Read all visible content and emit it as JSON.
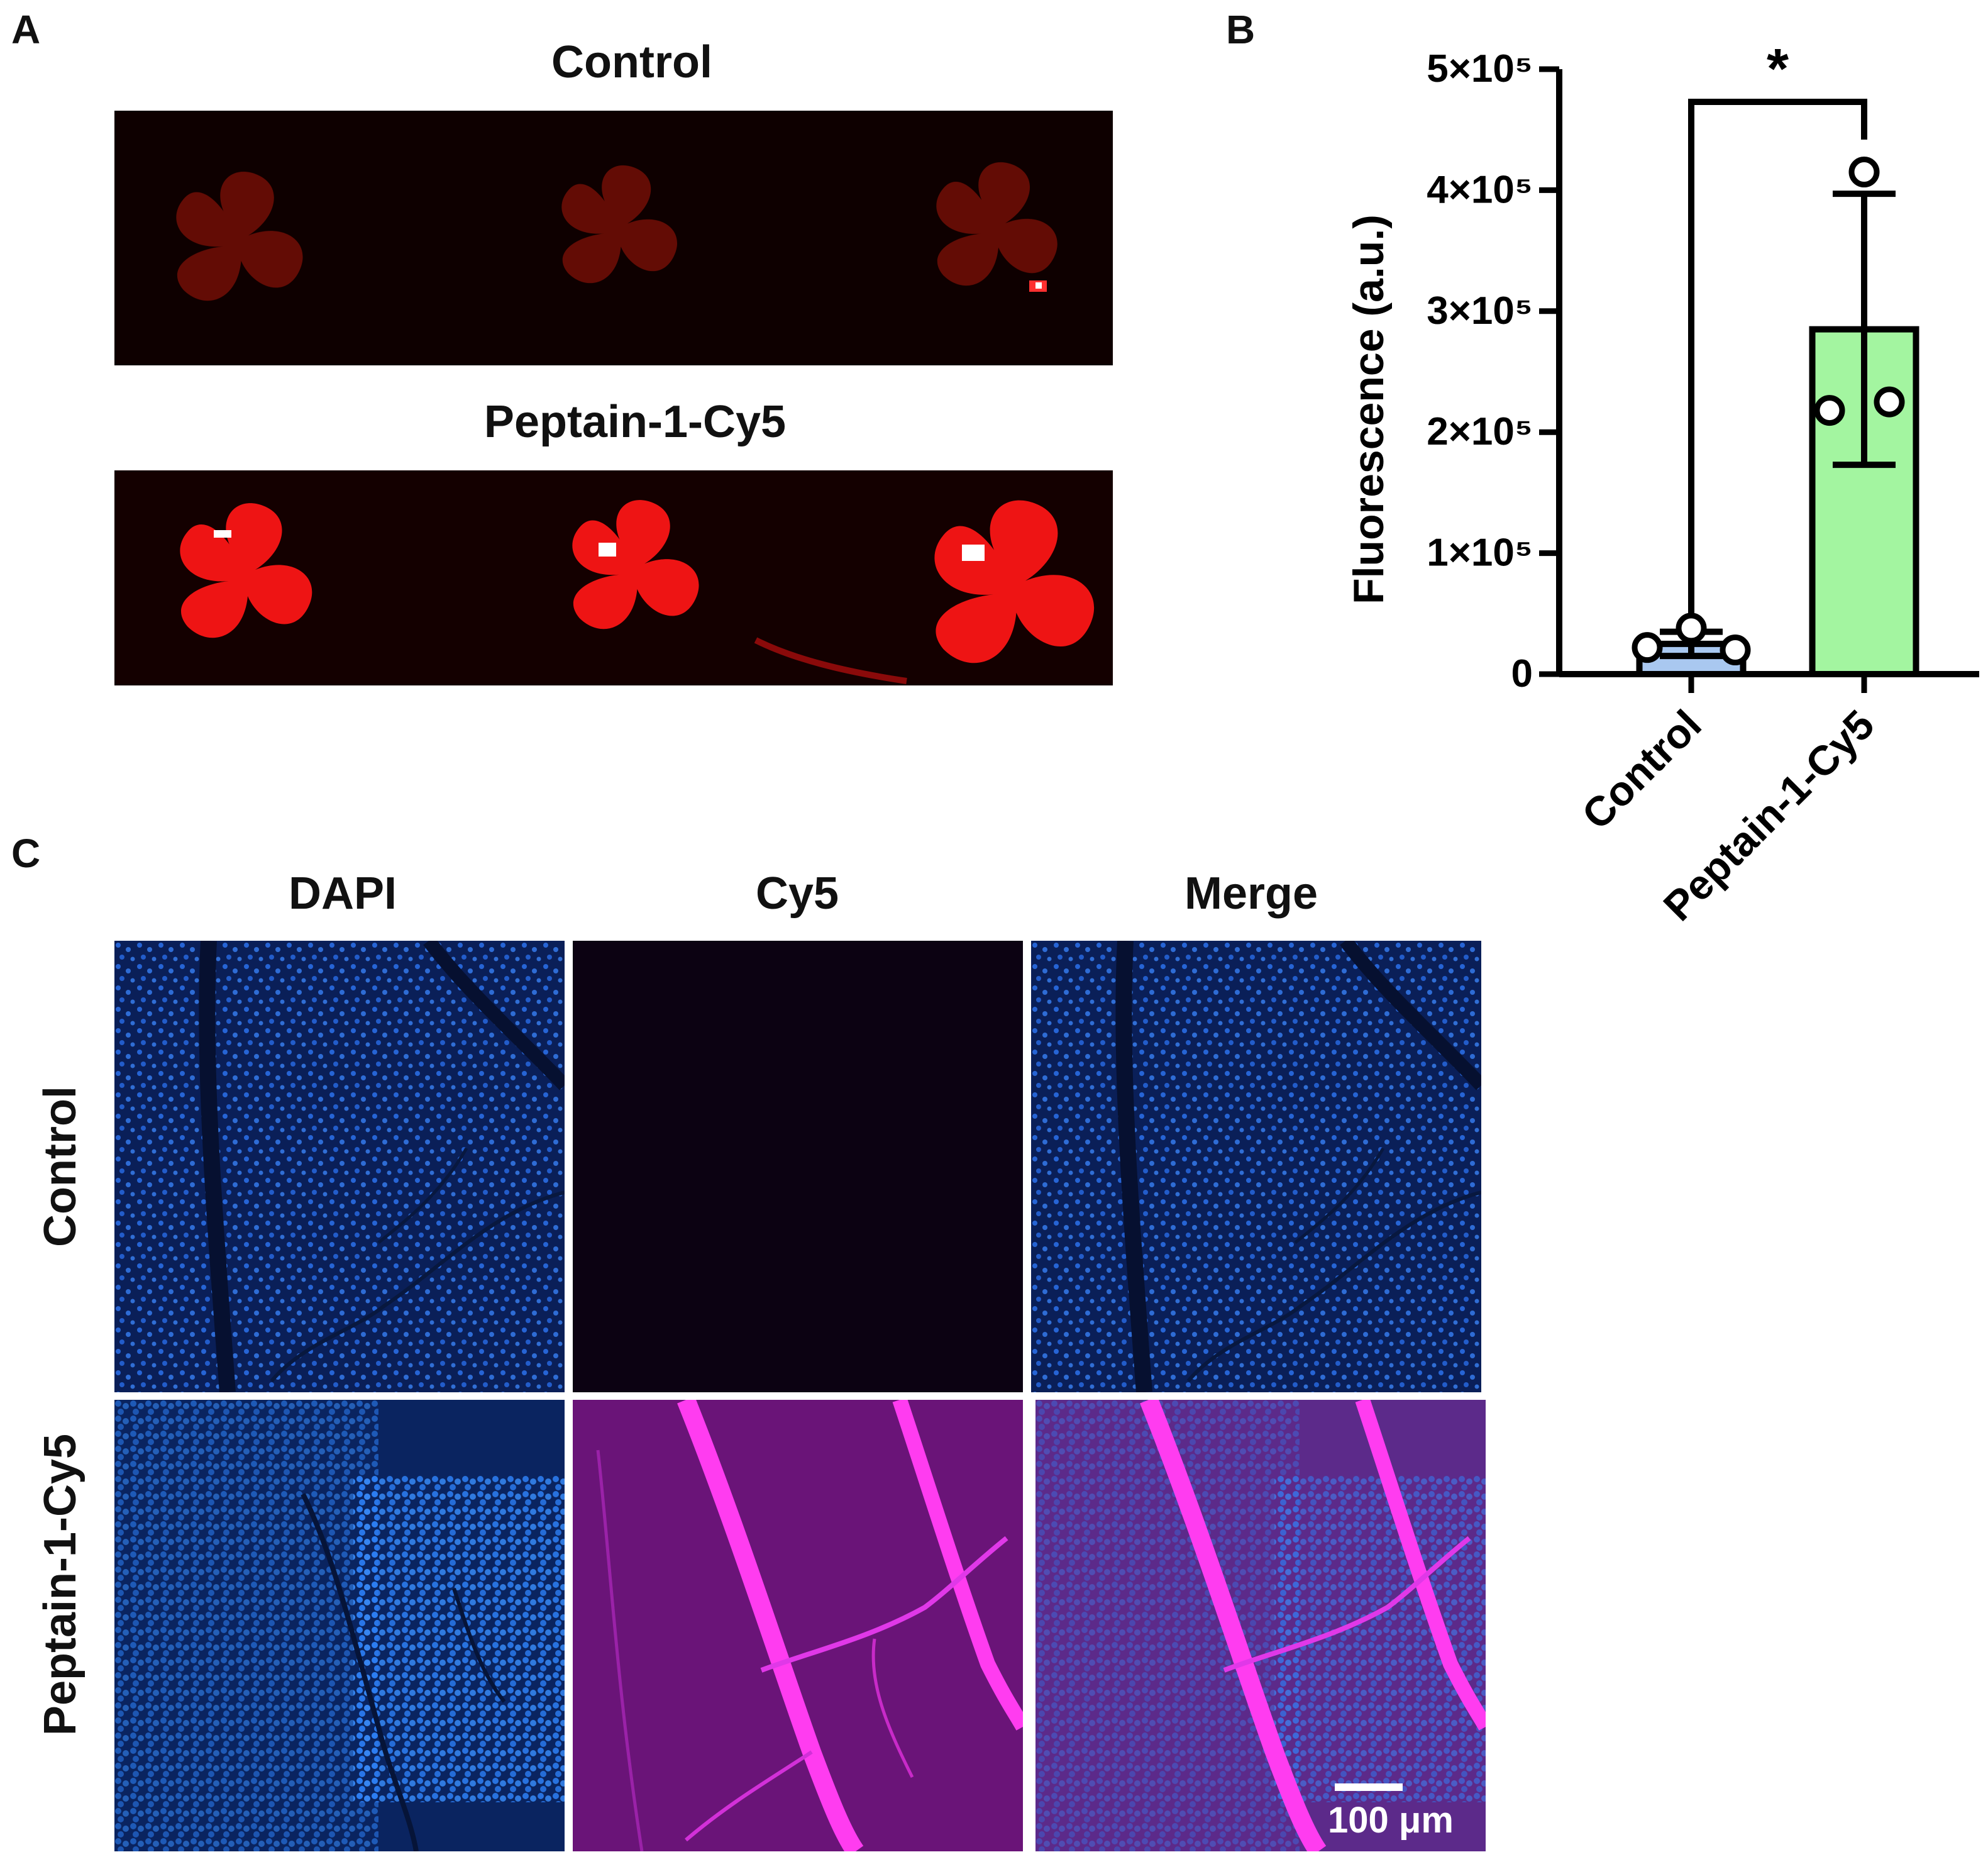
{
  "panels": {
    "a": {
      "letter": "A",
      "top_title": "Control",
      "bottom_title": "Peptain-1-Cy5"
    },
    "b": {
      "letter": "B"
    },
    "c": {
      "letter": "C",
      "columns": [
        "DAPI",
        "Cy5",
        "Merge"
      ],
      "rows": [
        "Control",
        "Peptain-1-Cy5"
      ],
      "scale_bar_label": "100 μm"
    }
  },
  "chart_data": {
    "type": "bar",
    "categories": [
      "Control",
      "Peptain-1-Cy5"
    ],
    "values": [
      25000,
      285000
    ],
    "error_sd": [
      10000,
      112000
    ],
    "points": [
      [
        22000,
        38000,
        20000
      ],
      [
        415000,
        218000,
        225000
      ]
    ],
    "ylabel": "Fluorescence (a.u.)",
    "ylim": [
      0,
      500000
    ],
    "yticks": [
      {
        "value": 0,
        "label": "0"
      },
      {
        "value": 100000,
        "label": "1×10⁵"
      },
      {
        "value": 200000,
        "label": "2×10⁵"
      },
      {
        "value": 300000,
        "label": "3×10⁵"
      },
      {
        "value": 400000,
        "label": "4×10⁵"
      },
      {
        "value": 500000,
        "label": "5×10⁵"
      }
    ],
    "significance": "*",
    "colors": [
      "#a9c8f0",
      "#a3f5a0"
    ],
    "grid": false
  }
}
